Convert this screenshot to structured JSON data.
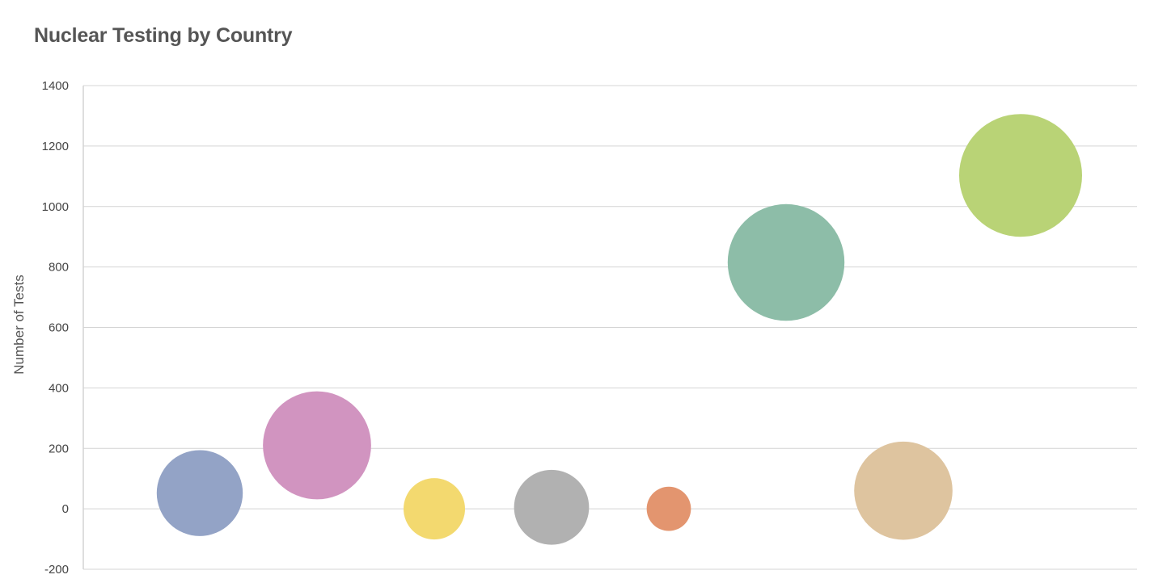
{
  "chart_data": {
    "type": "bubble",
    "title": "Nuclear Testing by Country",
    "ylabel": "Number of Tests",
    "xlabel": "",
    "ylim": [
      -200,
      1400
    ],
    "yticks": [
      1400,
      1200,
      1000,
      800,
      600,
      400,
      200,
      0,
      -200
    ],
    "grid": true,
    "points": [
      {
        "x": 1,
        "y": 52,
        "size": 0.7,
        "color": "#93a3c6"
      },
      {
        "x": 2,
        "y": 210,
        "size": 0.88,
        "color": "#d194c0"
      },
      {
        "x": 3,
        "y": 0,
        "size": 0.5,
        "color": "#f3d96f"
      },
      {
        "x": 4,
        "y": 5,
        "size": 0.61,
        "color": "#b1b1b1"
      },
      {
        "x": 5,
        "y": 0,
        "size": 0.36,
        "color": "#e3956f"
      },
      {
        "x": 6,
        "y": 815,
        "size": 0.95,
        "color": "#8dbda8"
      },
      {
        "x": 7,
        "y": 60,
        "size": 0.8,
        "color": "#dec49f"
      },
      {
        "x": 8,
        "y": 1103,
        "size": 1.0,
        "color": "#b9d376"
      }
    ]
  }
}
